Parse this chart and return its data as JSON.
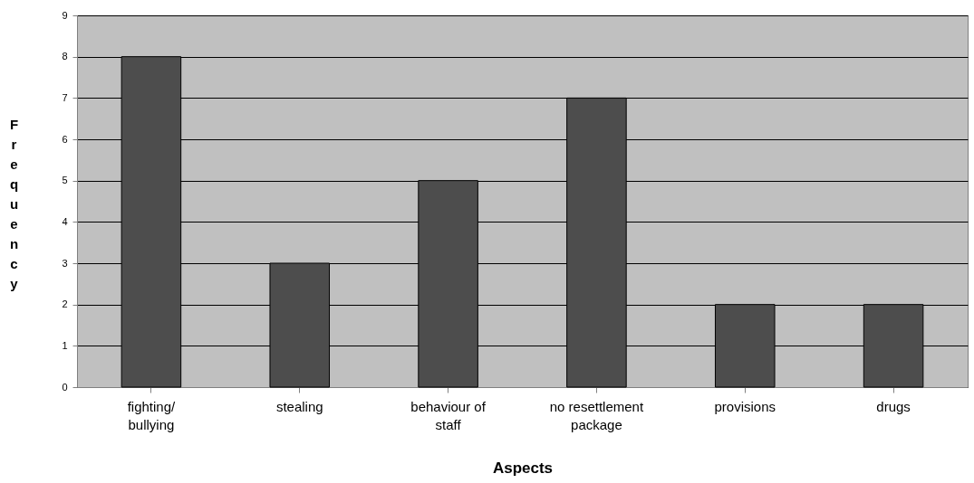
{
  "chart_data": {
    "type": "bar",
    "xlabel": "Aspects",
    "ylabel": "Frequency",
    "categories": [
      "fighting/\nbullying",
      "stealing",
      "behaviour of\nstaff",
      "no resettlement\npackage",
      "provisions",
      "drugs"
    ],
    "values": [
      8,
      3,
      5,
      7,
      2,
      2
    ],
    "color": "#4d4d4d",
    "ylim": [
      0,
      9
    ],
    "yticks": [
      0,
      1,
      2,
      3,
      4,
      5,
      6,
      7,
      8,
      9
    ],
    "grid": "y"
  }
}
